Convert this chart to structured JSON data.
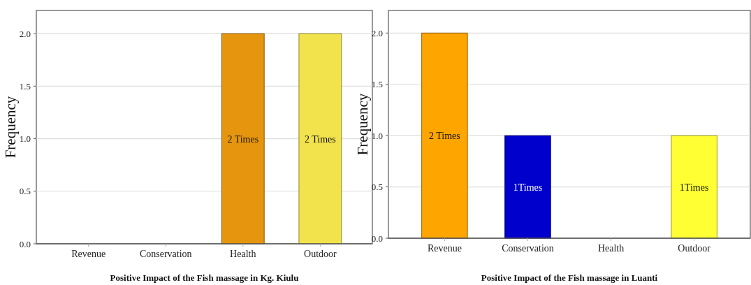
{
  "chart_data": [
    {
      "type": "bar",
      "xlabel": "Positive Impact of the Fish massage in Kg. Kiulu",
      "ylabel": "Frequency",
      "categories": [
        "Revenue",
        "Conservation",
        "Health",
        "Outdoor"
      ],
      "values": [
        0,
        0,
        2,
        2
      ],
      "colors": [
        "#2e8b57",
        "#c0502a",
        "#e6960e",
        "#f2e34c"
      ],
      "value_labels": [
        null,
        null,
        "2 Times",
        "2 Times"
      ],
      "ylim": [
        0,
        2.22
      ],
      "yticks": [
        {
          "value": 0,
          "label": "0.0"
        },
        {
          "value": 0.5,
          "label": "0.5"
        },
        {
          "value": 1,
          "label": "1.0"
        },
        {
          "value": 1.5,
          "label": "1.5"
        },
        {
          "value": 2,
          "label": "2.0"
        }
      ],
      "grid": "y"
    },
    {
      "type": "bar",
      "xlabel": "Positive Impact of the Fish massage in Luanti",
      "ylabel": "Frequency",
      "categories": [
        "Revenue",
        "Conservation",
        "Health",
        "Outdoor"
      ],
      "values": [
        2,
        1,
        0,
        1
      ],
      "colors": [
        "#ffa500",
        "#0000cd",
        "#2e8b57",
        "#ffff33"
      ],
      "value_labels": [
        "2 Times",
        "1Times",
        null,
        "1Times"
      ],
      "ylim": [
        0,
        2.22
      ],
      "yticks": [
        {
          "value": 0,
          "label": "0.0"
        },
        {
          "value": 0.5,
          "label": "0.5"
        },
        {
          "value": 1,
          "label": "1.0"
        },
        {
          "value": 1.5,
          "label": "1.5"
        },
        {
          "value": 2,
          "label": "2.0"
        }
      ],
      "grid": "y"
    }
  ]
}
